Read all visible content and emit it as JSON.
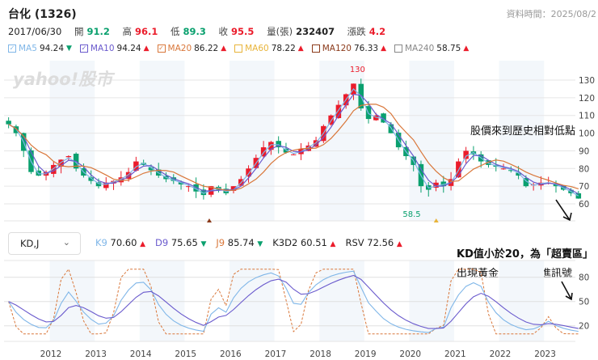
{
  "header": {
    "title": "台化 (1326)",
    "data_time": "資料時間：2025/08/2"
  },
  "quote": {
    "date": "2017/06/30",
    "open_label": "開",
    "open": "91.2",
    "high_label": "高",
    "high": "96.1",
    "low_label": "低",
    "low": "89.3",
    "close_label": "收",
    "close": "95.5",
    "volume_label": "量(張)",
    "volume": "232407",
    "change_label": "漲跌",
    "change": "4.2"
  },
  "ma_legend": [
    {
      "label": "MA5",
      "value": "94.24",
      "dir": "down",
      "checked": true,
      "color": "#7fb6e8"
    },
    {
      "label": "MA10",
      "value": "94.24",
      "dir": "up",
      "checked": true,
      "color": "#6a5acd"
    },
    {
      "label": "MA20",
      "value": "86.22",
      "dir": "up",
      "checked": true,
      "color": "#d9773a"
    },
    {
      "label": "MA60",
      "value": "78.22",
      "dir": "up",
      "checked": false,
      "color": "#e8b43a"
    },
    {
      "label": "MA120",
      "value": "76.33",
      "dir": "up",
      "checked": false,
      "color": "#8b3a1a"
    },
    {
      "label": "MA240",
      "value": "58.75",
      "dir": "up",
      "checked": false,
      "color": "#888888"
    }
  ],
  "watermark": "yahoo!股市",
  "chart_data": [
    {
      "type": "candlestick",
      "yticks": [
        60,
        70,
        80,
        90,
        100,
        110,
        120,
        130
      ],
      "ylim": [
        53,
        137
      ],
      "max_label": "130",
      "min_label": "58.5",
      "closes": [
        105,
        100,
        90,
        78,
        76,
        78,
        82,
        85,
        87,
        80,
        76,
        73,
        70,
        72,
        73,
        75,
        78,
        84,
        82,
        79,
        76,
        74,
        73,
        71,
        70,
        67,
        65,
        70,
        68,
        66,
        70,
        74,
        80,
        86,
        92,
        95,
        92,
        89,
        88,
        91,
        93,
        96,
        104,
        110,
        116,
        122,
        128,
        114,
        108,
        110,
        106,
        100,
        92,
        87,
        82,
        70,
        68,
        72,
        70,
        74,
        84,
        90,
        88,
        84,
        82,
        81,
        80,
        79,
        76,
        70,
        71,
        72,
        72,
        70,
        68,
        66,
        63
      ],
      "period": "2 months",
      "start": "2011-01",
      "colors": {
        "up": "#eb1c2b",
        "down": "#0aa06e"
      }
    },
    {
      "type": "line",
      "title": "KD,J",
      "yticks": [
        20,
        50,
        80
      ],
      "ylim": [
        0,
        100
      ],
      "xticks": [
        "2012",
        "2013",
        "2014",
        "2015",
        "2016",
        "2017",
        "2018",
        "2019",
        "2020",
        "2021",
        "2022",
        "2023"
      ]
    }
  ],
  "kd": {
    "selector": "KD,J",
    "items": [
      {
        "label": "K9",
        "value": "70.60",
        "dir": "up",
        "color": "#7fb6e8"
      },
      {
        "label": "D9",
        "value": "75.65",
        "dir": "down",
        "color": "#6a5acd"
      },
      {
        "label": "J9",
        "value": "85.74",
        "dir": "down",
        "color": "#d9773a"
      },
      {
        "label": "K3D2",
        "value": "60.51",
        "dir": "up",
        "color": "#222222"
      },
      {
        "label": "RSV",
        "value": "72.56",
        "dir": "up",
        "color": "#222222"
      }
    ]
  },
  "annotations": {
    "price_note": "股價來到歷史相對低點",
    "kd_note1": "KD值小於20，為「超賣區」",
    "kd_note2": "出現黃金交叉為買進訊號"
  }
}
